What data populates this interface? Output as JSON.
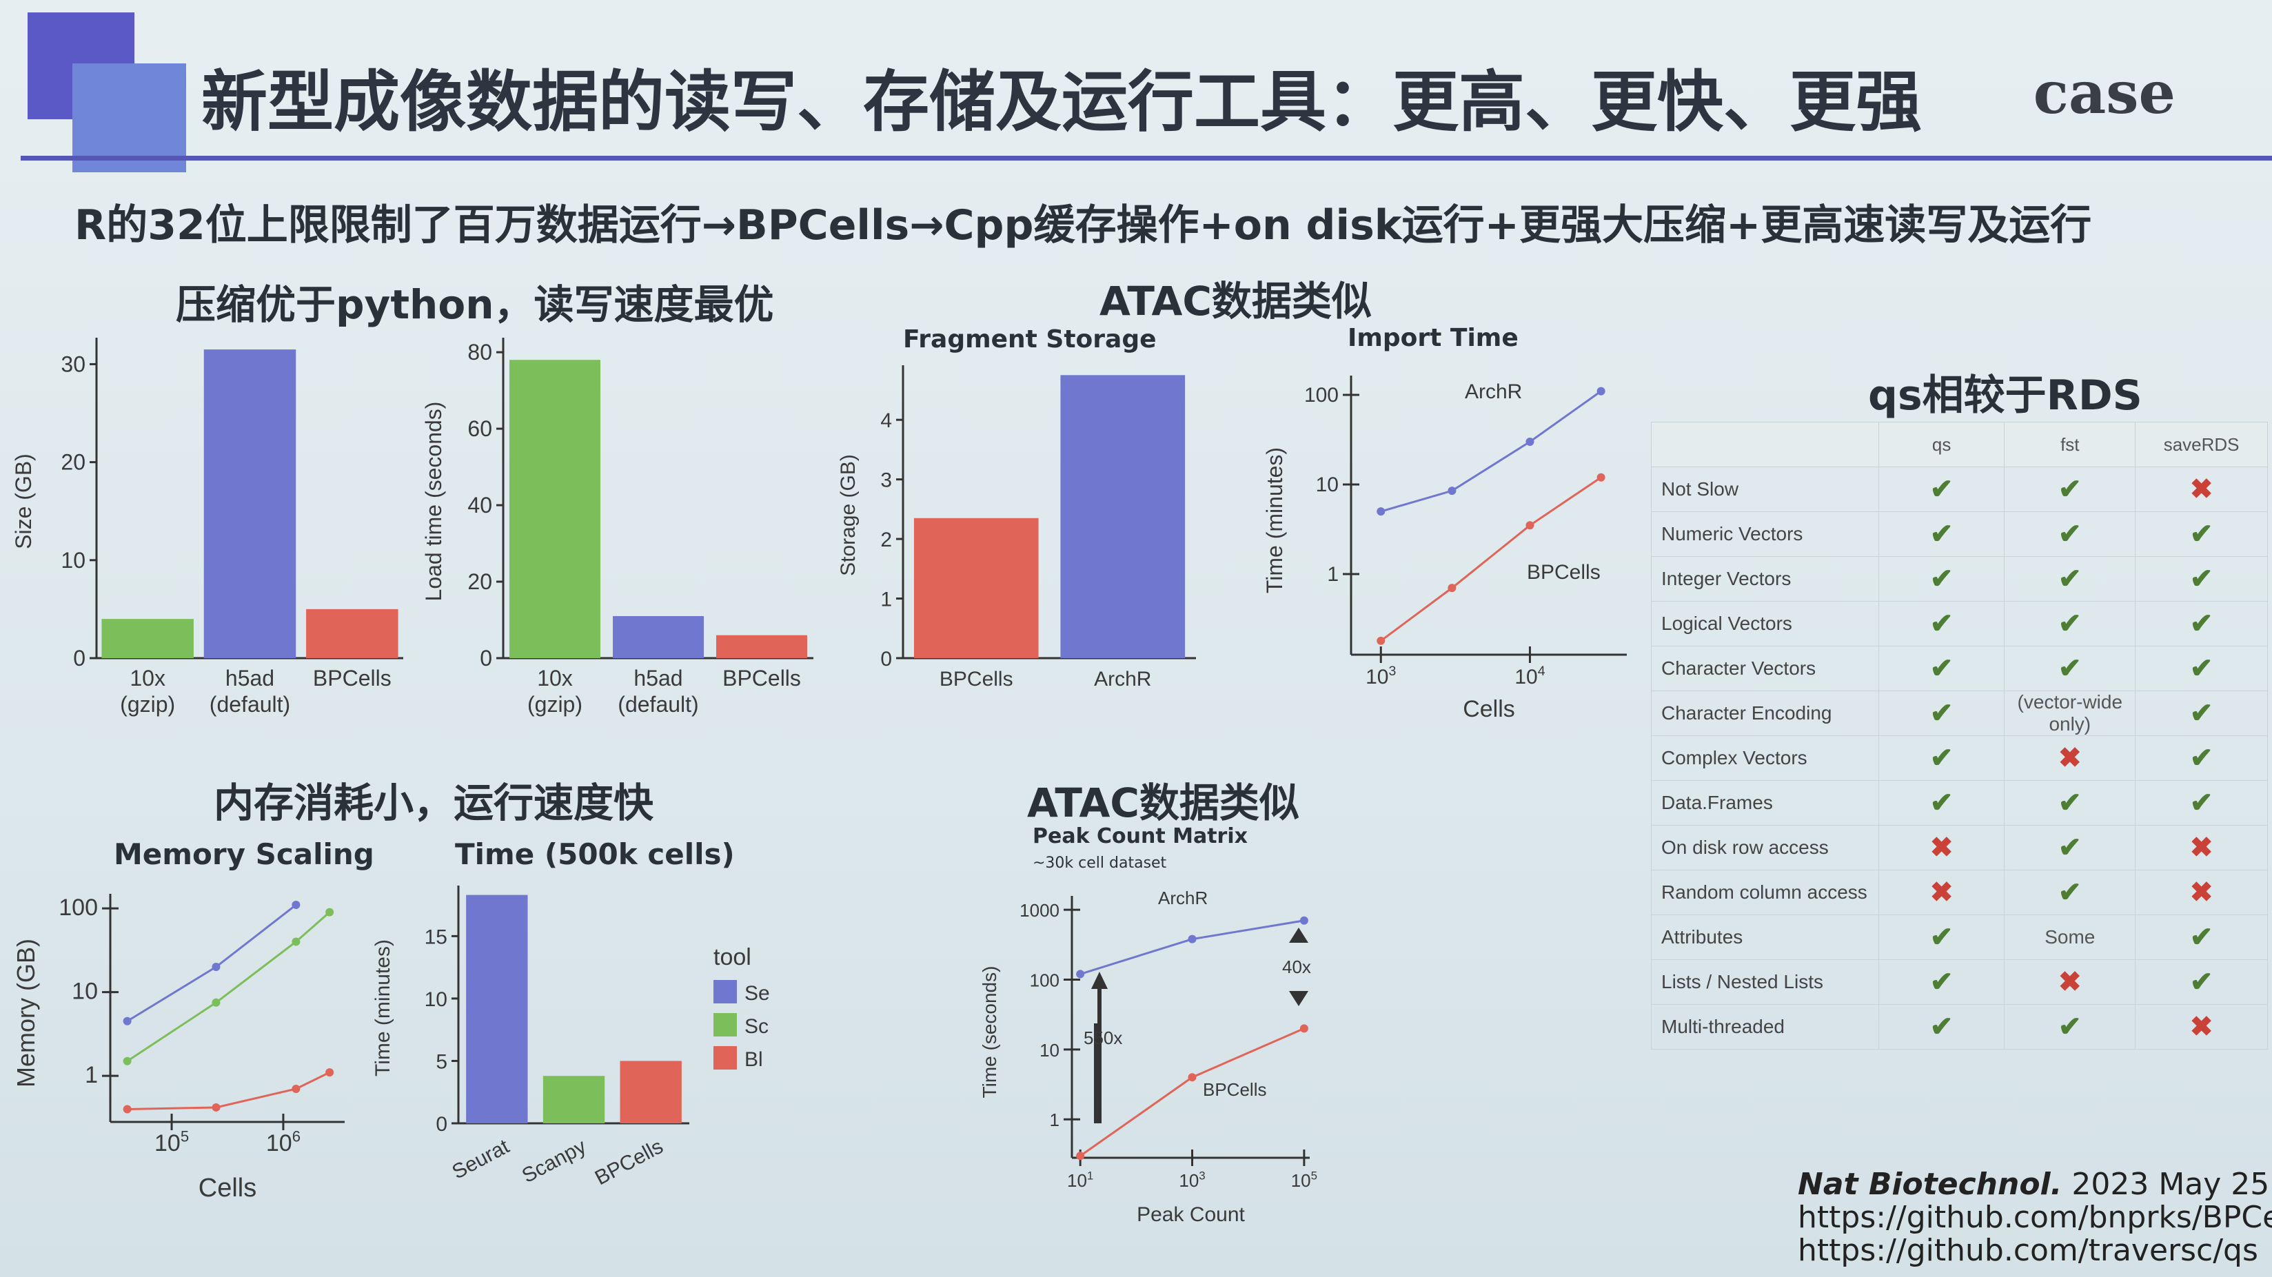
{
  "slide": {
    "title": "新型成像数据的读写、存储及运行工具：更高、更快、更强",
    "tag": "case",
    "subtitle": "R的32位上限限制了百万数据运行→BPCells→Cpp缓存操作+on disk运行+更强大压缩+更高速读写及运行"
  },
  "sections": {
    "compression": "压缩优于python，读写速度最优",
    "atac_top": "ATAC数据类似",
    "memory": "内存消耗小，运行速度快",
    "atac_bottom": "ATAC数据类似",
    "qs": "qs相较于RDS"
  },
  "colors": {
    "green": "#7cbf5a",
    "blue": "#6f77cf",
    "red": "#e06457",
    "check": "#4e7e34",
    "cross": "#c94137"
  },
  "chart_data": [
    {
      "type": "bar",
      "ylabel": "Size (GB)",
      "ylim": [
        0,
        32
      ],
      "yticks": [
        0,
        10,
        20,
        30
      ],
      "categories": [
        "10x\n(gzip)",
        "h5ad\n(default)",
        "BPCells"
      ],
      "values": [
        4,
        31.5,
        5
      ],
      "colors": [
        "green",
        "blue",
        "red"
      ]
    },
    {
      "type": "bar",
      "ylabel": "Load time (seconds)",
      "ylim": [
        0,
        82
      ],
      "yticks": [
        0,
        20,
        40,
        60,
        80
      ],
      "categories": [
        "10x\n(gzip)",
        "h5ad\n(default)",
        "BPCells"
      ],
      "values": [
        78,
        11,
        6
      ],
      "colors": [
        "green",
        "blue",
        "red"
      ]
    },
    {
      "type": "bar",
      "title": "Fragment Storage",
      "ylabel": "Storage (GB)",
      "ylim": [
        0,
        4.8
      ],
      "yticks": [
        0,
        1,
        2,
        3,
        4
      ],
      "categories": [
        "BPCells",
        "ArchR"
      ],
      "values": [
        2.35,
        4.75
      ],
      "colors": [
        "red",
        "blue"
      ]
    },
    {
      "type": "line",
      "title": "Import Time",
      "ylabel": "Time (minutes)",
      "xlabel": "Cells",
      "xscale": "log",
      "yscale": "log",
      "xticks": [
        "10^3",
        "10^4"
      ],
      "yticks": [
        "1",
        "10",
        "100"
      ],
      "series": [
        {
          "name": "ArchR",
          "color": "blue",
          "points": [
            [
              1000,
              5
            ],
            [
              3000,
              8.5
            ],
            [
              10000,
              30
            ],
            [
              30000,
              110
            ]
          ]
        },
        {
          "name": "BPCells",
          "color": "red",
          "points": [
            [
              1000,
              0.18
            ],
            [
              3000,
              0.7
            ],
            [
              10000,
              3.5
            ],
            [
              30000,
              12
            ]
          ]
        }
      ]
    },
    {
      "type": "line",
      "title": "Memory Scaling",
      "ylabel": "Memory (GB)",
      "xlabel": "Cells",
      "xscale": "log",
      "yscale": "log",
      "xticks": [
        "10^5",
        "10^6"
      ],
      "yticks": [
        "1",
        "10",
        "100"
      ],
      "series": [
        {
          "color": "blue",
          "points": [
            [
              40000,
              4.5
            ],
            [
              250000,
              20
            ],
            [
              1300000,
              110
            ]
          ]
        },
        {
          "color": "green",
          "points": [
            [
              40000,
              1.5
            ],
            [
              250000,
              7.5
            ],
            [
              1300000,
              40
            ],
            [
              2600000,
              90
            ]
          ]
        },
        {
          "color": "red",
          "points": [
            [
              40000,
              0.4
            ],
            [
              250000,
              0.42
            ],
            [
              1300000,
              0.7
            ],
            [
              2600000,
              1.1
            ]
          ]
        }
      ]
    },
    {
      "type": "bar",
      "title": "Time (500k cells)",
      "ylabel": "Time (minutes)",
      "ylim": [
        0,
        18.5
      ],
      "yticks": [
        0,
        5,
        10,
        15
      ],
      "categories": [
        "Seurat",
        "Scanpy",
        "BPCells"
      ],
      "values": [
        18.3,
        3.8,
        5
      ],
      "colors": [
        "blue",
        "green",
        "red"
      ],
      "legend": {
        "title": "tool",
        "items": [
          "Se",
          "Sc",
          "Bl"
        ]
      }
    },
    {
      "type": "line",
      "title": "Peak Count Matrix",
      "subtitle": "~30k cell dataset",
      "ylabel": "Time (seconds)",
      "xlabel": "Peak Count",
      "xscale": "log",
      "yscale": "log",
      "xticks": [
        "10^1",
        "10^3",
        "10^5"
      ],
      "yticks": [
        "1",
        "10",
        "100",
        "1000"
      ],
      "annotations": [
        "550x",
        "40x"
      ],
      "series": [
        {
          "name": "ArchR",
          "color": "blue",
          "points": [
            [
              10,
              120
            ],
            [
              1000,
              380
            ],
            [
              100000,
              700
            ]
          ]
        },
        {
          "name": "BPCells",
          "color": "red",
          "points": [
            [
              10,
              0.3
            ],
            [
              1000,
              4
            ],
            [
              100000,
              20
            ]
          ]
        }
      ]
    }
  ],
  "table": {
    "headers": [
      "qs",
      "fst",
      "saveRDS"
    ],
    "rows": [
      {
        "feature": "Not Slow",
        "values": [
          "check",
          "check",
          "cross"
        ]
      },
      {
        "feature": "Numeric Vectors",
        "values": [
          "check",
          "check",
          "check"
        ]
      },
      {
        "feature": "Integer Vectors",
        "values": [
          "check",
          "check",
          "check"
        ]
      },
      {
        "feature": "Logical Vectors",
        "values": [
          "check",
          "check",
          "check"
        ]
      },
      {
        "feature": "Character Vectors",
        "values": [
          "check",
          "check",
          "check"
        ]
      },
      {
        "feature": "Character Encoding",
        "values": [
          "check",
          "(vector-wide only)",
          "check"
        ]
      },
      {
        "feature": "Complex Vectors",
        "values": [
          "check",
          "cross",
          "check"
        ]
      },
      {
        "feature": "Data.Frames",
        "values": [
          "check",
          "check",
          "check"
        ]
      },
      {
        "feature": "On disk row access",
        "values": [
          "cross",
          "check",
          "cross"
        ]
      },
      {
        "feature": "Random column access",
        "values": [
          "cross",
          "check",
          "cross"
        ]
      },
      {
        "feature": "Attributes",
        "values": [
          "check",
          "Some",
          "check"
        ]
      },
      {
        "feature": "Lists / Nested Lists",
        "values": [
          "check",
          "cross",
          "check"
        ]
      },
      {
        "feature": "Multi-threaded",
        "values": [
          "check",
          "check",
          "cross"
        ]
      }
    ]
  },
  "citation": {
    "journal": "Nat Biotechnol.",
    "date": "2023 May 25.",
    "url1": "https://github.com/bnprks/BPCells",
    "url2": "https://github.com/traversc/qs"
  }
}
